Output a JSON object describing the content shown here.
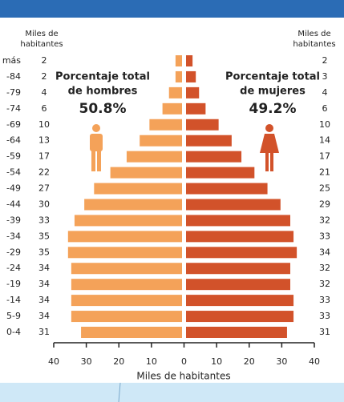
{
  "chart_data": {
    "type": "pyramid",
    "left_unit": [
      "Miles de",
      "habitantes"
    ],
    "right_unit": [
      "Miles de",
      "habitantes"
    ],
    "x_label": "Miles de habitantes",
    "annotations": [
      {
        "lines": [
          "Porcentaje total",
          "de hombres"
        ],
        "percent": "50.8%"
      },
      {
        "lines": [
          "Porcentaje total",
          "de mujeres"
        ],
        "percent": "49.2%"
      }
    ],
    "categories": [
      "más",
      "-84",
      "-79",
      "-74",
      "-69",
      "-64",
      "-59",
      "-54",
      "-49",
      "-44",
      "-39",
      "-34",
      "-29",
      "-24",
      "-19",
      "-14",
      "5-9",
      "0-4"
    ],
    "series": [
      {
        "side": "left",
        "color": "#f4a259",
        "values": [
          2,
          2,
          4,
          6,
          10,
          13,
          17,
          22,
          27,
          30,
          33,
          35,
          35,
          34,
          34,
          34,
          34,
          31
        ]
      },
      {
        "side": "right",
        "color": "#d2522a",
        "values": [
          2,
          3,
          4,
          6,
          10,
          14,
          17,
          21,
          25,
          29,
          32,
          33,
          34,
          32,
          32,
          33,
          33,
          31
        ]
      }
    ],
    "xlim": [
      -40,
      40
    ],
    "xticks": [
      {
        "value": -40,
        "label": "40"
      },
      {
        "value": -30,
        "label": "30"
      },
      {
        "value": -20,
        "label": "20"
      },
      {
        "value": -10,
        "label": "10"
      },
      0,
      10,
      20,
      30,
      40
    ]
  }
}
